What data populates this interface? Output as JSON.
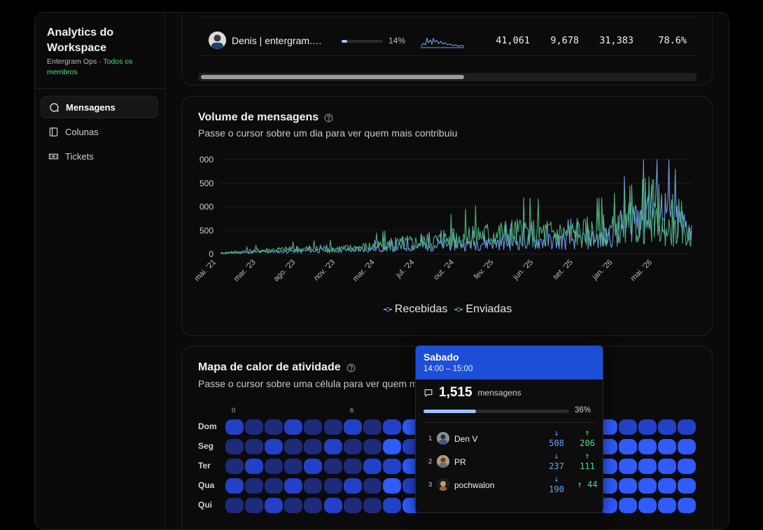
{
  "sidebar": {
    "title": "Analytics do Workspace",
    "workspace_name": "Entergram Ops",
    "separator": "·",
    "scope": "Todos os membros",
    "items": [
      {
        "label": "Mensagens",
        "icon": "message-circle-icon",
        "active": true
      },
      {
        "label": "Colunas",
        "icon": "columns-icon",
        "active": false
      },
      {
        "label": "Tickets",
        "icon": "ticket-icon",
        "active": false
      }
    ]
  },
  "members_table": {
    "rows": [
      {
        "name": "",
        "share_pct": "",
        "total": "",
        "received": "",
        "sent": "",
        "ratio": ""
      },
      {
        "name": "Denis | entergram.com",
        "share": 0.14,
        "share_pct": "14%",
        "total": "41,061",
        "received": "9,678",
        "sent": "31,383",
        "ratio": "78.6%"
      }
    ]
  },
  "volume_chart": {
    "title": "Volume de mensagens",
    "subtitle": "Passe o cursor sobre um dia para ver quem mais contribuiu",
    "legend": [
      "Recebidas",
      "Enviadas"
    ]
  },
  "chart_data": {
    "type": "line",
    "title": "Volume de mensagens",
    "xlabel": "",
    "ylabel": "",
    "y_tick_labels": [
      "0",
      "500",
      "000",
      "500",
      "000"
    ],
    "x_tick_labels": [
      "mai. '21",
      "mar. '23",
      "ago. '23",
      "nov. '23",
      "mar. '24",
      "jul. '24",
      "out. '24",
      "fev. '25",
      "jun. '25",
      "set. '25",
      "jan. '26",
      "mai. '26"
    ],
    "ylim": [
      0,
      2000
    ],
    "grid": true,
    "legend_position": "bottom",
    "series": [
      {
        "name": "Recebidas",
        "color": "#6b9ee6",
        "x": [
          "mai. '21",
          "mar. '23",
          "ago. '23",
          "nov. '23",
          "mar. '24",
          "jul. '24",
          "out. '24",
          "fev. '25",
          "jun. '25",
          "set. '25",
          "jan. '26",
          "mai. '26"
        ],
        "values": [
          20,
          60,
          90,
          110,
          170,
          240,
          300,
          330,
          360,
          420,
          1350,
          620
        ]
      },
      {
        "name": "Enviadas",
        "color": "#4caf7a",
        "x": [
          "mai. '21",
          "mar. '23",
          "ago. '23",
          "nov. '23",
          "mar. '24",
          "jul. '24",
          "out. '24",
          "fev. '25",
          "jun. '25",
          "set. '25",
          "jan. '26",
          "mai. '26"
        ],
        "values": [
          30,
          110,
          140,
          160,
          260,
          360,
          520,
          600,
          560,
          600,
          820,
          480
        ]
      }
    ]
  },
  "heatmap": {
    "title": "Mapa de calor de atividade",
    "subtitle": "Passe o cursor sobre uma célula para ver quem mais contribuiu",
    "hour_labels": [
      "0",
      "6"
    ],
    "days": [
      "Dom",
      "Seg",
      "Ter",
      "Qua",
      "Qui"
    ],
    "colors": {
      "low": "#1e2b7a",
      "mid": "#2340c9",
      "high": "#2f5bff"
    }
  },
  "tooltip": {
    "day": "Sabado",
    "time_range": "14:00 – 15:00",
    "count": "1,515",
    "count_label": "mensagens",
    "share": 0.36,
    "share_pct": "36%",
    "contributors": [
      {
        "rank": "1",
        "name": "Den V",
        "received": "508",
        "sent": "206",
        "recv_arrow": "↓",
        "sent_arrow": "↑"
      },
      {
        "rank": "2",
        "name": "PR",
        "received": "237",
        "sent": "111",
        "recv_arrow": "↓",
        "sent_arrow": "↑"
      },
      {
        "rank": "3",
        "name": "pochwalon",
        "received": "190",
        "sent": "44",
        "recv_arrow": "↓",
        "sent_arrow": "↑"
      }
    ]
  }
}
